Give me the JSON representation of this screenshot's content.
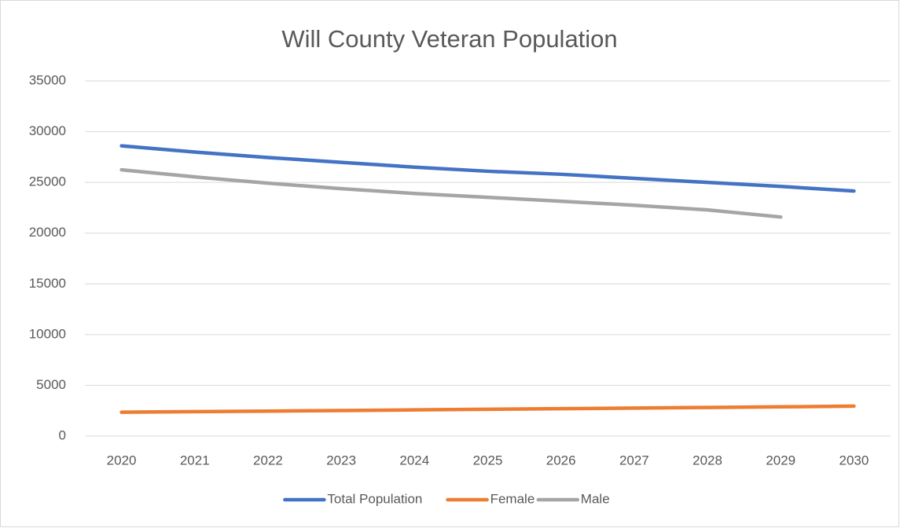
{
  "chart_data": {
    "type": "line",
    "title": "Will County Veteran Population",
    "categories": [
      "2020",
      "2021",
      "2022",
      "2023",
      "2024",
      "2025",
      "2026",
      "2027",
      "2028",
      "2029",
      "2030"
    ],
    "series": [
      {
        "name": "Total Population",
        "color": "#4472c4",
        "values": [
          28600,
          27990,
          27450,
          26980,
          26500,
          26100,
          25800,
          25400,
          25000,
          24600,
          24150
        ]
      },
      {
        "name": "Female",
        "color": "#ed7d31",
        "values": [
          2350,
          2410,
          2460,
          2520,
          2580,
          2640,
          2700,
          2760,
          2820,
          2880,
          2950
        ]
      },
      {
        "name": "Male",
        "color": "#a5a5a5",
        "values": [
          26240,
          25540,
          24920,
          24380,
          23910,
          23530,
          23140,
          22750,
          22290,
          21590,
          null
        ]
      }
    ],
    "ylim": [
      0,
      35000
    ],
    "yticks": [
      0,
      5000,
      10000,
      15000,
      20000,
      25000,
      30000,
      35000
    ],
    "grid": true,
    "legend": "bottom"
  }
}
